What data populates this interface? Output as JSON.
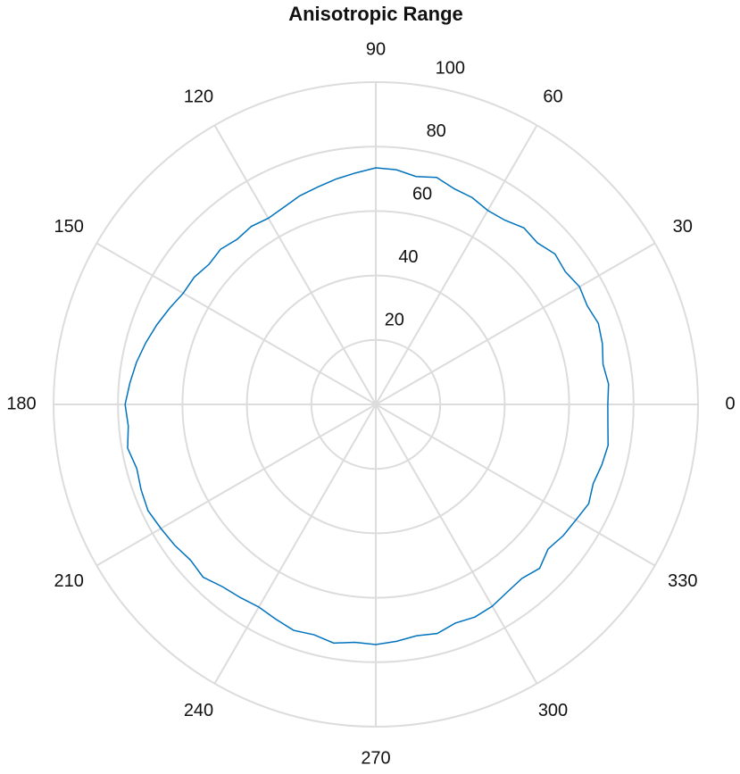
{
  "chart_data": {
    "type": "polar",
    "title": "Anisotropic Range",
    "x": [
      0,
      5,
      10,
      15,
      20,
      25,
      30,
      35,
      40,
      45,
      50,
      55,
      60,
      65,
      70,
      75,
      80,
      85,
      90,
      95,
      100,
      105,
      110,
      115,
      120,
      125,
      130,
      135,
      140,
      145,
      150,
      155,
      160,
      165,
      170,
      175,
      180,
      185,
      190,
      195,
      200,
      205,
      210,
      215,
      220,
      225,
      230,
      235,
      240,
      245,
      250,
      255,
      260,
      265,
      270,
      275,
      280,
      285,
      290,
      295,
      300,
      305,
      310,
      315,
      320,
      325,
      330,
      335,
      340,
      345,
      350,
      355,
      360
    ],
    "series": [
      {
        "color": "#0072bd",
        "values": [
          72.0,
          72.5,
          71.6,
          72.8,
          73.5,
          72.4,
          73.0,
          71.8,
          72.6,
          70.9,
          71.5,
          69.8,
          69.5,
          70.8,
          71.2,
          72.9,
          71.8,
          73.1,
          73.4,
          72.1,
          71.0,
          69.8,
          68.9,
          67.5,
          66.7,
          67.4,
          66.9,
          68.1,
          67.6,
          68.8,
          69.0,
          70.6,
          72.3,
          73.9,
          75.4,
          76.6,
          77.8,
          77.1,
          78.2,
          76.8,
          77.5,
          78.0,
          77.0,
          76.2,
          75.1,
          75.8,
          73.9,
          73.2,
          72.6,
          73.5,
          74.6,
          74.0,
          75.2,
          74.1,
          74.5,
          73.8,
          72.9,
          73.6,
          72.2,
          72.8,
          72.3,
          71.1,
          70.5,
          71.9,
          69.8,
          71.0,
          71.7,
          72.9,
          71.8,
          72.6,
          73.2,
          72.3,
          72.0
        ]
      }
    ],
    "xlim": [
      0,
      360
    ],
    "xticks": [
      0,
      30,
      60,
      90,
      120,
      150,
      180,
      210,
      240,
      270,
      300,
      330
    ],
    "ylim": [
      0,
      100
    ],
    "yticks": [
      20,
      40,
      60,
      80,
      100
    ],
    "grid": true
  }
}
